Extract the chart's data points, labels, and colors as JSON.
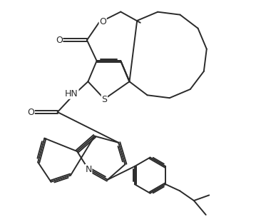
{
  "bg_color": "#ffffff",
  "line_color": "#2a2a2a",
  "line_width": 1.4,
  "figsize": [
    3.66,
    3.11
  ],
  "dpi": 100,
  "xlim": [
    0,
    10
  ],
  "ylim": [
    0,
    10
  ]
}
